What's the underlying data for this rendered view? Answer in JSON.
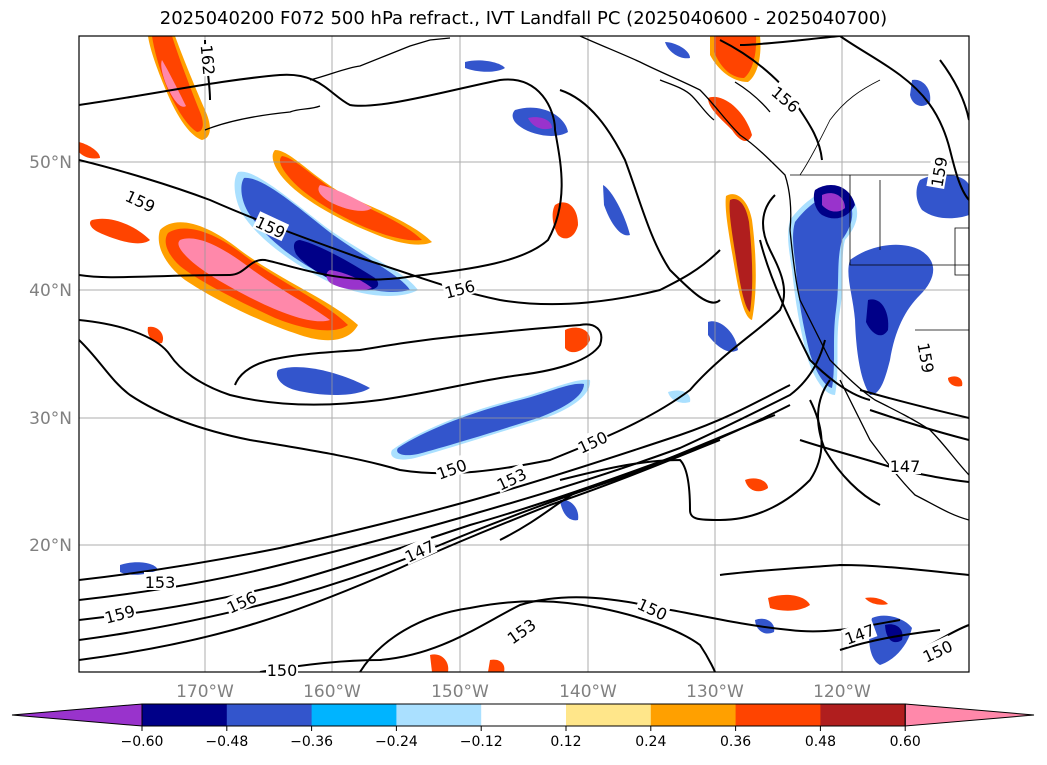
{
  "title": "2025040200 F072 500 hPa refract., IVT Landfall PC (2025040600 - 2025040700)",
  "axes": {
    "lat_ticks": [
      "50°N",
      "40°N",
      "30°N",
      "20°N"
    ],
    "lon_ticks": [
      "170°W",
      "160°W",
      "150°W",
      "140°W",
      "130°W",
      "120°W"
    ]
  },
  "contour_labels": [
    "162",
    "159",
    "159",
    "156",
    "159",
    "156",
    "159",
    "150",
    "153",
    "150",
    "147",
    "147",
    "153",
    "156",
    "159",
    "150",
    "150",
    "153",
    "147",
    "150"
  ],
  "colorbar": {
    "ticks": [
      "−0.60",
      "−0.48",
      "−0.36",
      "−0.24",
      "−0.12",
      "0.12",
      "0.24",
      "0.36",
      "0.48",
      "0.60"
    ],
    "colors": [
      "#9933cc",
      "#000088",
      "#3355cc",
      "#00b4ff",
      "#aae0ff",
      "#ffffff",
      "#ffe68a",
      "#ffa000",
      "#ff4400",
      "#b01e1e",
      "#ff88aa"
    ]
  }
}
